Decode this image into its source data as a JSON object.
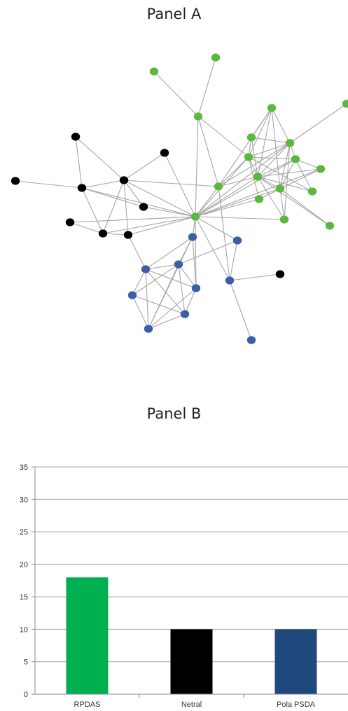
{
  "panel_a": {
    "title": "Panel A",
    "node_colors": {
      "green": "#5cb83d",
      "black": "#000000",
      "blue": "#3a5fa8"
    },
    "edge_color": "#a6a6a6"
  },
  "panel_b": {
    "title": "Panel B"
  },
  "chart_data": {
    "type": "bar",
    "categories": [
      "RPDAS",
      "Netral",
      "Pola PSDA"
    ],
    "values": [
      18,
      10,
      10
    ],
    "colors": [
      "#00b050",
      "#000000",
      "#1f497d"
    ],
    "title": "",
    "xlabel": "",
    "ylabel": "",
    "ylim": [
      0,
      35
    ],
    "yticks": [
      0,
      5,
      10,
      15,
      20,
      25,
      30,
      35
    ],
    "grid": true
  }
}
